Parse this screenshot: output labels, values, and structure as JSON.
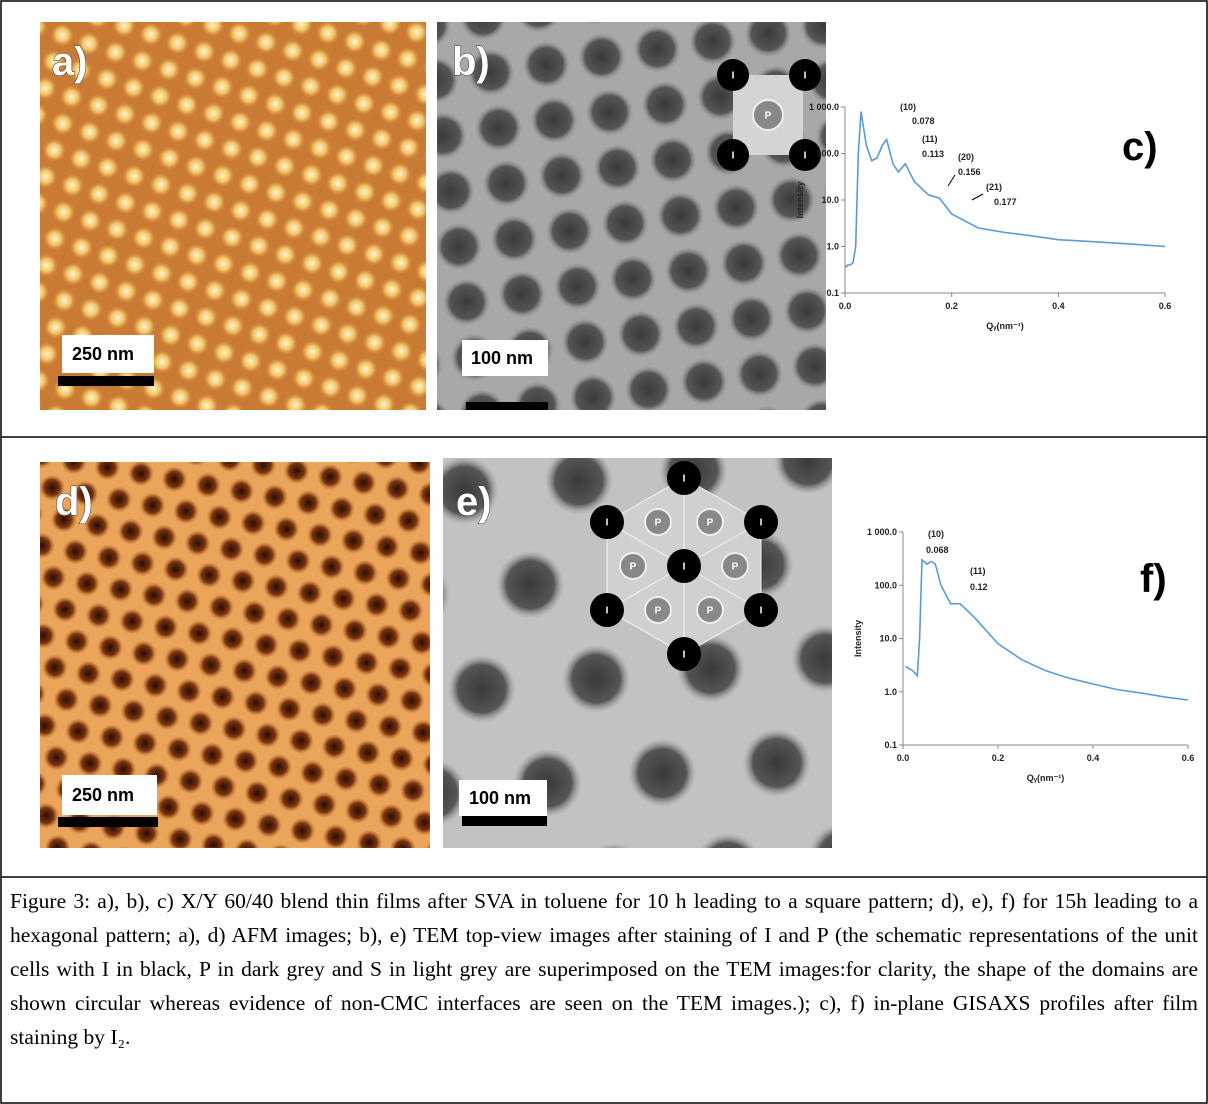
{
  "panels": {
    "a": "a)",
    "b": "b)",
    "c": "c)",
    "d": "d)",
    "e": "e)",
    "f": "f)"
  },
  "scale_bars": {
    "a": "250 nm",
    "b": "100 nm",
    "d": "250 nm",
    "e": "100 nm"
  },
  "schematic": {
    "black": "I",
    "grey": "P"
  },
  "chart_data": [
    {
      "type": "line",
      "log_y": true,
      "color": "#5b9bd5",
      "ylabel": "Intensity",
      "xlabel": "Qᵧ(nm⁻¹)",
      "x": [
        0,
        0.005,
        0.01,
        0.015,
        0.02,
        0.025,
        0.03,
        0.04,
        0.05,
        0.06,
        0.07,
        0.078,
        0.09,
        0.1,
        0.113,
        0.13,
        0.156,
        0.177,
        0.2,
        0.25,
        0.3,
        0.35,
        0.4,
        0.45,
        0.5,
        0.55,
        0.6
      ],
      "values": [
        0.35,
        0.4,
        0.4,
        0.45,
        1,
        100,
        800,
        150,
        70,
        80,
        150,
        200,
        60,
        40,
        60,
        25,
        13,
        11,
        5,
        2.5,
        2,
        1.7,
        1.4,
        1.3,
        1.2,
        1.1,
        1.0
      ],
      "xlim": [
        0,
        0.6
      ],
      "ylim": [
        0.1,
        1000
      ],
      "xticks": [
        {
          "value": 0,
          "label": "0.0"
        },
        0.2,
        0.4,
        0.6
      ],
      "yticks": [
        0.1,
        {
          "value": 1,
          "label": "1.0"
        },
        {
          "value": 10,
          "label": "10.0"
        },
        {
          "value": 100,
          "label": "100.0"
        },
        {
          "value": 1000,
          "label": "1 000.0"
        }
      ],
      "annotations": [
        {
          "label": "(10)",
          "value": 0.078
        },
        {
          "label": "(11)",
          "value": 0.113
        },
        {
          "label": "(20)",
          "value": 0.156
        },
        {
          "label": "(21)",
          "value": 0.177
        }
      ]
    },
    {
      "type": "line",
      "log_y": true,
      "color": "#5b9bd5",
      "ylabel": "Intensity",
      "xlabel": "Qᵧ(nm⁻¹)",
      "x": [
        0.005,
        0.02,
        0.03,
        0.035,
        0.04,
        0.05,
        0.06,
        0.068,
        0.08,
        0.1,
        0.12,
        0.15,
        0.2,
        0.25,
        0.3,
        0.35,
        0.4,
        0.45,
        0.5,
        0.55,
        0.6
      ],
      "values": [
        3,
        2.5,
        2,
        10,
        300,
        250,
        280,
        250,
        100,
        45,
        45,
        25,
        8,
        4,
        2.5,
        1.8,
        1.4,
        1.1,
        0.95,
        0.8,
        0.7
      ],
      "xlim": [
        0,
        0.6
      ],
      "ylim": [
        0.1,
        1000
      ],
      "xticks": [
        {
          "value": 0,
          "label": "0.0"
        },
        0.2,
        0.4,
        0.6
      ],
      "yticks": [
        0.1,
        {
          "value": 1,
          "label": "1.0"
        },
        {
          "value": 10,
          "label": "10.0"
        },
        {
          "value": 100,
          "label": "100.0"
        },
        {
          "value": 1000,
          "label": "1 000.0"
        }
      ],
      "annotations": [
        {
          "label": "(10)",
          "value": 0.068
        },
        {
          "label": "(11)",
          "value": 0.12
        }
      ]
    }
  ],
  "caption": "Figure 3: a), b), c) X/Y 60/40 blend thin films after SVA in toluene for 10 h leading to a square pattern; d), e), f) for 15h leading to a hexagonal pattern; a), d) AFM images; b), e) TEM top-view images after staining of I and P (the schematic representations of the unit cells with I in black, P in dark grey and S in light grey are superimposed on the TEM images:for clarity, the shape of the domains are shown circular whereas evidence of non-CMC interfaces are seen on the TEM images.); c), f) in-plane GISAXS profiles after film staining by I₂."
}
